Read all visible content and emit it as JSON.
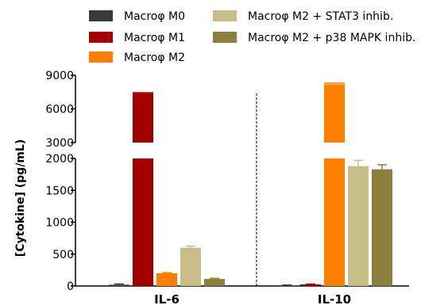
{
  "chart_data": {
    "type": "bar",
    "title": "",
    "xlabel": "",
    "ylabel": "[Cytokine] (pg/mL)",
    "categories": [
      "IL-6",
      "IL-10"
    ],
    "series": [
      {
        "name": "Macroφ M0",
        "color": "#3a3a3a",
        "values": [
          20,
          10
        ],
        "errors": [
          12,
          5
        ]
      },
      {
        "name": "Macroφ M1",
        "color": "#a30000",
        "values": [
          7400,
          25
        ],
        "errors": [
          50,
          5
        ]
      },
      {
        "name": "Macroφ M2",
        "color": "#ff8000",
        "values": [
          200,
          8200
        ],
        "errors": [
          8,
          100
        ]
      },
      {
        "name": "Macroφ M2 + STAT3 inhib.",
        "color": "#c8bd86",
        "values": [
          600,
          1880
        ],
        "errors": [
          25,
          90
        ]
      },
      {
        "name": "Macroφ M2 + p38 MAPK inhib.",
        "color": "#8c7e3b",
        "values": [
          110,
          1830
        ],
        "errors": [
          10,
          70
        ]
      }
    ],
    "y_axis_break": {
      "lower_range": [
        0,
        2000
      ],
      "upper_range": [
        3000,
        9000
      ]
    },
    "yticks_lower": [
      "0",
      "500",
      "1000",
      "1500",
      "2000"
    ],
    "yticks_upper": [
      "3000",
      "6000",
      "9000"
    ],
    "separator_between_categories": "dashed vertical line",
    "legend_placement": "top",
    "grid": false
  }
}
